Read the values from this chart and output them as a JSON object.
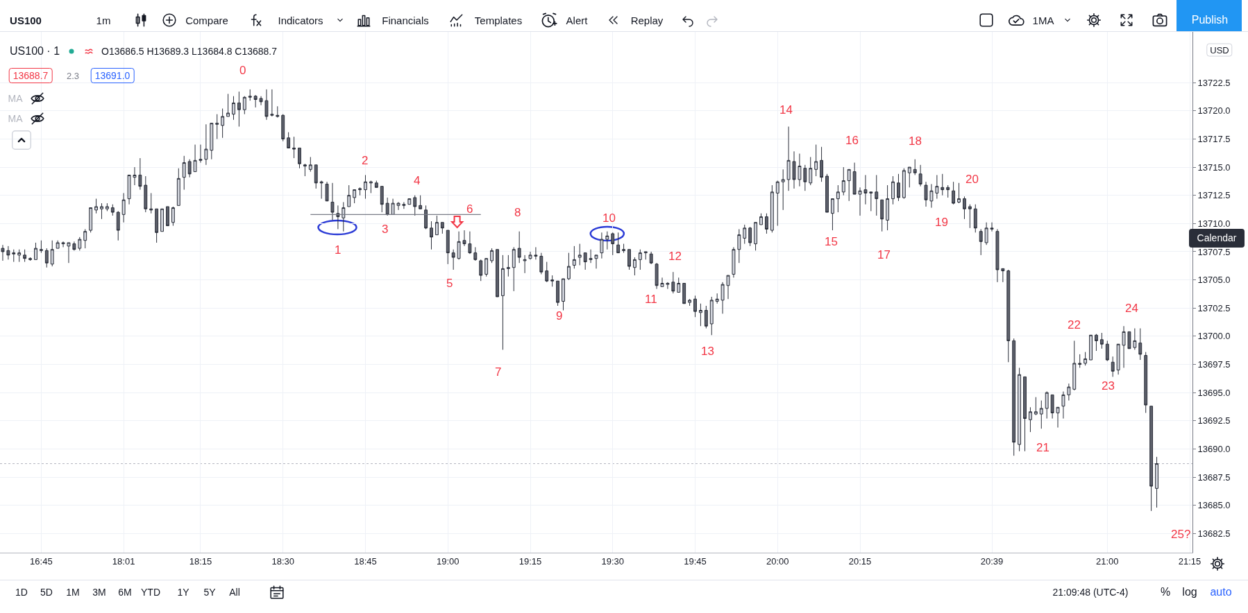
{
  "chart_data": {
    "type": "candlestick",
    "title": "US100 · 1",
    "subtitle": "O13686.5 H13689.3 L13684.8 C13688.7",
    "categories": [
      null,
      null,
      null,
      null,
      null,
      null,
      null,
      "16:45",
      null,
      null,
      null,
      null,
      null,
      null,
      null,
      null,
      null,
      null,
      null,
      null,
      null,
      null,
      "18:01",
      null,
      null,
      null,
      null,
      null,
      null,
      null,
      null,
      null,
      null,
      null,
      null,
      null,
      "18:15",
      null,
      null,
      null,
      null,
      null,
      null,
      null,
      null,
      null,
      null,
      null,
      null,
      null,
      null,
      "18:30",
      null,
      null,
      null,
      null,
      null,
      null,
      null,
      null,
      null,
      null,
      null,
      null,
      null,
      null,
      "18:45",
      null,
      null,
      null,
      null,
      null,
      null,
      null,
      null,
      null,
      null,
      null,
      null,
      null,
      null,
      "19:00",
      null,
      null,
      null,
      null,
      null,
      null,
      null,
      null,
      null,
      null,
      null,
      null,
      null,
      null,
      "19:15",
      null,
      null,
      null,
      null,
      null,
      null,
      null,
      null,
      null,
      null,
      null,
      null,
      null,
      null,
      "19:30",
      null,
      null,
      null,
      null,
      null,
      null,
      null,
      null,
      null,
      null,
      null,
      null,
      null,
      null,
      "19:45",
      null,
      null,
      null,
      null,
      null,
      null,
      null,
      null,
      null,
      null,
      null,
      null,
      null,
      null,
      "20:00",
      null,
      null,
      null,
      null,
      null,
      null,
      null,
      null,
      null,
      null,
      null,
      null,
      null,
      null,
      "20:15",
      null,
      null,
      null,
      null,
      null,
      null,
      null,
      null,
      null,
      null,
      null,
      null,
      null,
      null,
      null,
      null,
      null,
      null,
      null,
      null,
      null,
      null,
      null,
      "20:39",
      null,
      null,
      null,
      null,
      null,
      null,
      null,
      null,
      null,
      null,
      null,
      null,
      null,
      null,
      null,
      null,
      null,
      null,
      null,
      null,
      "21:00",
      null,
      null,
      null,
      null,
      null,
      null,
      null,
      null,
      null,
      null,
      null,
      null,
      null,
      null,
      "21:15"
    ],
    "ohlc": [
      [
        13707.8,
        13708.1,
        13706.7,
        13707.5
      ],
      [
        13707.6,
        13708.0,
        13706.8,
        13707.2
      ],
      [
        13707.4,
        13707.7,
        13706.6,
        13707.3
      ],
      [
        13707.2,
        13707.7,
        13706.6,
        13707.4
      ],
      [
        13707.2,
        13707.7,
        13706.6,
        13706.9
      ],
      [
        13706.9,
        13707.0,
        13706.7,
        13706.8
      ],
      [
        13706.8,
        13708.3,
        13706.8,
        13707.8
      ],
      [
        13707.6,
        13708.5,
        13707.4,
        13707.7
      ],
      [
        13707.6,
        13707.8,
        13706.1,
        13706.5
      ],
      [
        13706.4,
        13708.5,
        13706.2,
        13707.7
      ],
      [
        13707.8,
        13708.5,
        13707.8,
        13708.3
      ],
      [
        13708.2,
        13708.4,
        13707.9,
        13708.3
      ],
      [
        13708.0,
        13708.3,
        13706.5,
        13708.3
      ],
      [
        13708.2,
        13708.4,
        13707.6,
        13707.7
      ],
      [
        13707.8,
        13708.8,
        13707.6,
        13708.6
      ],
      [
        13708.5,
        13709.5,
        13707.8,
        13709.3
      ],
      [
        13709.4,
        13711.4,
        13709.2,
        13711.4
      ],
      [
        13711.2,
        13712.2,
        13710.9,
        13711.5
      ],
      [
        13711.3,
        13711.8,
        13710.4,
        13711.5
      ],
      [
        13711.3,
        13711.8,
        13711.1,
        13711.5
      ],
      [
        13711.4,
        13711.7,
        13710.7,
        13711.0
      ],
      [
        13711.0,
        13711.1,
        13708.5,
        13709.4
      ],
      [
        13710.8,
        13712.7,
        13710.1,
        13712.1
      ],
      [
        13712.2,
        13714.3,
        13711.7,
        13714.3
      ],
      [
        13714.1,
        13715.0,
        13713.4,
        13714.3
      ],
      [
        13714.3,
        13715.8,
        13713.0,
        13713.3
      ],
      [
        13713.4,
        13714.2,
        13711.0,
        13711.3
      ],
      [
        13711.3,
        13712.7,
        13710.9,
        13711.2
      ],
      [
        13711.3,
        13711.3,
        13708.3,
        13709.2
      ],
      [
        13709.3,
        13711.3,
        13709.3,
        13711.3
      ],
      [
        13711.5,
        13711.5,
        13709.8,
        13709.8
      ],
      [
        13710.1,
        13711.5,
        13709.8,
        13711.4
      ],
      [
        13711.6,
        13714.9,
        13711.6,
        13714.0
      ],
      [
        13714.1,
        13716.0,
        13713.0,
        13715.4
      ],
      [
        13715.5,
        13715.7,
        13714.1,
        13714.4
      ],
      [
        13714.6,
        13717.0,
        13714.6,
        13715.6
      ],
      [
        13715.6,
        13717.0,
        13715.4,
        13715.7
      ],
      [
        13715.7,
        13718.8,
        13715.2,
        13716.6
      ],
      [
        13716.5,
        13718.9,
        13715.7,
        13718.9
      ],
      [
        13718.8,
        13719.7,
        13717.5,
        13718.9
      ],
      [
        13718.7,
        13720.2,
        13717.6,
        13719.5
      ],
      [
        13719.5,
        13721.5,
        13719.5,
        13719.8
      ],
      [
        13719.7,
        13721.3,
        13719.2,
        13720.7
      ],
      [
        13720.7,
        13721.7,
        13718.6,
        13720.1
      ],
      [
        13720.1,
        13721.3,
        13719.7,
        13721.2
      ],
      [
        13721.2,
        13721.9,
        13720.9,
        13721.3
      ],
      [
        13721.3,
        13721.4,
        13720.3,
        13721.0
      ],
      [
        13721.1,
        13721.3,
        13720.5,
        13720.8
      ],
      [
        13720.9,
        13721.9,
        13719.2,
        13719.5
      ],
      [
        13719.6,
        13721.9,
        13719.5,
        13719.7
      ],
      [
        13719.6,
        13720.4,
        13719.4,
        13719.5
      ],
      [
        13719.6,
        13719.7,
        13717.3,
        13717.5
      ],
      [
        13717.6,
        13718.1,
        13716.7,
        13716.7
      ],
      [
        13716.7,
        13717.7,
        13715.8,
        13716.6
      ],
      [
        13716.7,
        13716.7,
        13714.9,
        13715.3
      ],
      [
        13715.2,
        13715.3,
        13714.2,
        13715.1
      ],
      [
        13714.8,
        13715.9,
        13714.6,
        13715.2
      ],
      [
        13715.2,
        13715.2,
        13713.1,
        13713.6
      ],
      [
        13713.7,
        13713.8,
        13712.2,
        13713.6
      ],
      [
        13713.5,
        13713.7,
        13712.0,
        13712.0
      ],
      [
        13711.9,
        13713.6,
        13710.3,
        13711.0
      ],
      [
        13710.9,
        13711.6,
        13709.5,
        13710.6
      ],
      [
        13710.5,
        13711.9,
        13709.3,
        13711.4
      ],
      [
        13711.5,
        13713.4,
        13711.5,
        13712.5
      ],
      [
        13712.3,
        13713.0,
        13711.8,
        13713.0
      ],
      [
        13713.0,
        13713.2,
        13712.5,
        13713.1
      ],
      [
        13713.0,
        13714.3,
        13712.2,
        13713.7
      ],
      [
        13713.6,
        13713.8,
        13712.7,
        13713.7
      ],
      [
        13713.6,
        13713.8,
        13713.2,
        13713.2
      ],
      [
        13713.3,
        13713.3,
        13711.0,
        13711.7
      ],
      [
        13711.8,
        13712.3,
        13710.7,
        13710.8
      ],
      [
        13710.8,
        13712.2,
        13710.8,
        13711.8
      ],
      [
        13711.6,
        13711.9,
        13711.2,
        13711.8
      ],
      [
        13711.6,
        13711.9,
        13711.3,
        13711.7
      ],
      [
        13711.7,
        13712.2,
        13711.7,
        13712.2
      ],
      [
        13712.3,
        13712.5,
        13710.7,
        13711.5
      ],
      [
        13711.6,
        13712.5,
        13711.3,
        13711.3
      ],
      [
        13711.2,
        13711.6,
        13709.5,
        13709.6
      ],
      [
        13709.6,
        13710.2,
        13707.7,
        13708.8
      ],
      [
        13709.0,
        13710.7,
        13709.0,
        13710.1
      ],
      [
        13710.1,
        13710.1,
        13709.1,
        13709.6
      ],
      [
        13709.4,
        13709.4,
        13706.4,
        13707.4
      ],
      [
        13707.4,
        13707.7,
        13705.9,
        13707.0
      ],
      [
        13706.9,
        13709.3,
        13706.8,
        13708.4
      ],
      [
        13708.5,
        13709.4,
        13708.0,
        13708.2
      ],
      [
        13708.2,
        13709.3,
        13707.3,
        13707.4
      ],
      [
        13707.4,
        13707.9,
        13706.7,
        13706.8
      ],
      [
        13706.7,
        13706.8,
        13704.9,
        13705.4
      ],
      [
        13705.5,
        13706.9,
        13705.3,
        13706.9
      ],
      [
        13706.7,
        13707.8,
        13706.5,
        13707.6
      ],
      [
        13707.7,
        13707.7,
        13703.5,
        13703.5
      ],
      [
        13703.6,
        13707.2,
        13698.8,
        13706.0
      ],
      [
        13706.0,
        13707.2,
        13705.3,
        13706.1
      ],
      [
        13706.1,
        13707.9,
        13704.0,
        13707.7
      ],
      [
        13707.8,
        13709.3,
        13706.5,
        13707.0
      ],
      [
        13706.7,
        13707.2,
        13705.6,
        13706.8
      ],
      [
        13706.9,
        13707.5,
        13706.8,
        13707.2
      ],
      [
        13707.1,
        13707.9,
        13706.8,
        13707.2
      ],
      [
        13707.1,
        13707.4,
        13705.5,
        13705.7
      ],
      [
        13705.8,
        13706.6,
        13704.8,
        13704.9
      ],
      [
        13705.0,
        13705.4,
        13704.4,
        13704.9
      ],
      [
        13704.9,
        13704.9,
        13702.7,
        13703.0
      ],
      [
        13703.1,
        13705.1,
        13702.3,
        13705.1
      ],
      [
        13705.1,
        13707.4,
        13705.0,
        13706.2
      ],
      [
        13706.3,
        13708.0,
        13706.0,
        13706.8
      ],
      [
        13707.0,
        13708.2,
        13706.3,
        13707.2
      ],
      [
        13707.4,
        13707.4,
        13705.9,
        13706.6
      ],
      [
        13706.8,
        13707.7,
        13706.5,
        13706.9
      ],
      [
        13706.9,
        13707.2,
        13706.0,
        13707.2
      ],
      [
        13707.4,
        13709.2,
        13706.9,
        13708.6
      ],
      [
        13708.6,
        13709.3,
        13707.7,
        13708.9
      ],
      [
        13709.1,
        13709.2,
        13707.2,
        13708.2
      ],
      [
        13708.1,
        13709.2,
        13707.4,
        13707.4
      ],
      [
        13707.7,
        13708.2,
        13707.4,
        13707.6
      ],
      [
        13707.7,
        13707.7,
        13705.9,
        13706.2
      ],
      [
        13706.1,
        13707.0,
        13705.4,
        13706.8
      ],
      [
        13706.8,
        13707.7,
        13705.9,
        13707.4
      ],
      [
        13707.4,
        13707.5,
        13706.8,
        13707.5
      ],
      [
        13707.3,
        13707.5,
        13706.4,
        13706.5
      ],
      [
        13706.4,
        13706.5,
        13704.2,
        13704.5
      ],
      [
        13704.4,
        13705.2,
        13704.4,
        13704.7
      ],
      [
        13704.6,
        13704.8,
        13704.2,
        13704.7
      ],
      [
        13704.8,
        13705.7,
        13703.8,
        13704.0
      ],
      [
        13703.9,
        13705.2,
        13703.9,
        13704.7
      ],
      [
        13704.7,
        13704.7,
        13702.9,
        13702.9
      ],
      [
        13703.0,
        13703.3,
        13702.7,
        13703.2
      ],
      [
        13703.3,
        13703.6,
        13701.7,
        13702.2
      ],
      [
        13702.1,
        13702.9,
        13700.9,
        13702.3
      ],
      [
        13702.3,
        13702.7,
        13700.7,
        13700.9
      ],
      [
        13701.1,
        13703.5,
        13700.1,
        13703.2
      ],
      [
        13703.1,
        13703.8,
        13702.9,
        13703.3
      ],
      [
        13703.2,
        13704.8,
        13702.0,
        13704.6
      ],
      [
        13704.5,
        13705.4,
        13703.3,
        13705.4
      ],
      [
        13705.5,
        13707.9,
        13705.2,
        13707.7
      ],
      [
        13707.7,
        13709.5,
        13706.5,
        13709.0
      ],
      [
        13708.7,
        13709.9,
        13708.2,
        13709.6
      ],
      [
        13709.6,
        13709.7,
        13708.0,
        13708.3
      ],
      [
        13708.2,
        13710.1,
        13707.6,
        13710.1
      ],
      [
        13709.9,
        13710.9,
        13709.9,
        13710.6
      ],
      [
        13710.6,
        13710.9,
        13709.1,
        13709.5
      ],
      [
        13709.4,
        13713.4,
        13709.2,
        13712.8
      ],
      [
        13712.7,
        13713.8,
        13709.8,
        13713.7
      ],
      [
        13713.7,
        13714.8,
        13711.2,
        13713.9
      ],
      [
        13713.9,
        13718.6,
        13712.9,
        13715.6
      ],
      [
        13715.5,
        13716.4,
        13713.1,
        13713.9
      ],
      [
        13713.9,
        13716.2,
        13713.3,
        13715.1
      ],
      [
        13714.9,
        13715.2,
        13712.9,
        13713.7
      ],
      [
        13713.6,
        13715.9,
        13713.4,
        13714.9
      ],
      [
        13714.8,
        13717.0,
        13714.2,
        13715.5
      ],
      [
        13715.6,
        13716.8,
        13713.7,
        13714.1
      ],
      [
        13714.2,
        13714.4,
        13711.0,
        13711.0
      ],
      [
        13710.9,
        13712.2,
        13709.4,
        13712.2
      ],
      [
        13712.2,
        13713.4,
        13711.0,
        13712.8
      ],
      [
        13712.8,
        13715.0,
        13712.5,
        13713.8
      ],
      [
        13713.8,
        13714.8,
        13712.0,
        13714.8
      ],
      [
        13714.6,
        13715.4,
        13712.6,
        13712.6
      ],
      [
        13712.6,
        13713.2,
        13710.7,
        13712.9
      ],
      [
        13713.0,
        13714.3,
        13711.7,
        13712.7
      ],
      [
        13712.8,
        13712.8,
        13711.1,
        13712.7
      ],
      [
        13712.8,
        13714.3,
        13710.7,
        13712.2
      ],
      [
        13712.1,
        13712.1,
        13709.3,
        13710.4
      ],
      [
        13710.3,
        13713.4,
        13709.4,
        13712.2
      ],
      [
        13712.2,
        13714.2,
        13711.7,
        13713.7
      ],
      [
        13713.6,
        13714.4,
        13712.0,
        13712.3
      ],
      [
        13712.3,
        13714.9,
        13712.2,
        13714.7
      ],
      [
        13714.5,
        13715.0,
        13713.2,
        13715.0
      ],
      [
        13714.8,
        13715.7,
        13714.3,
        13714.5
      ],
      [
        13714.4,
        13715.2,
        13713.3,
        13713.5
      ],
      [
        13713.4,
        13713.7,
        13711.5,
        13712.1
      ],
      [
        13712.0,
        13713.5,
        13711.4,
        13712.9
      ],
      [
        13712.7,
        13714.3,
        13712.2,
        13713.3
      ],
      [
        13713.2,
        13714.4,
        13712.5,
        13713.0
      ],
      [
        13713.2,
        13713.4,
        13712.3,
        13713.0
      ],
      [
        13712.9,
        13713.7,
        13711.7,
        13711.8
      ],
      [
        13711.9,
        13713.6,
        13711.8,
        13712.2
      ],
      [
        13712.2,
        13712.4,
        13710.4,
        13711.3
      ],
      [
        13711.5,
        13711.7,
        13709.6,
        13711.3
      ],
      [
        13711.3,
        13711.7,
        13709.2,
        13709.6
      ],
      [
        13709.3,
        13709.5,
        13707.2,
        13708.4
      ],
      [
        13708.3,
        13710.1,
        13708.1,
        13709.6
      ],
      [
        13709.5,
        13710.1,
        13709.3,
        13709.6
      ],
      [
        13709.3,
        13709.5,
        13704.8,
        13705.9
      ],
      [
        13706.0,
        13706.0,
        13704.8,
        13705.8
      ],
      [
        13705.8,
        13705.9,
        13697.7,
        13699.6
      ],
      [
        13699.6,
        13699.8,
        13689.4,
        13690.6
      ],
      [
        13690.4,
        13697.2,
        13689.8,
        13696.6
      ],
      [
        13696.4,
        13696.4,
        13689.8,
        13692.7
      ],
      [
        13692.6,
        13693.7,
        13691.5,
        13693.3
      ],
      [
        13693.1,
        13694.6,
        13693.0,
        13693.3
      ],
      [
        13693.1,
        13694.3,
        13691.8,
        13693.6
      ],
      [
        13693.6,
        13695.1,
        13692.7,
        13695.0
      ],
      [
        13694.8,
        13694.8,
        13692.7,
        13693.2
      ],
      [
        13693.2,
        13693.7,
        13691.9,
        13693.7
      ],
      [
        13693.8,
        13695.1,
        13692.7,
        13694.8
      ],
      [
        13694.8,
        13695.8,
        13694.3,
        13695.5
      ],
      [
        13695.3,
        13699.6,
        13695.2,
        13697.6
      ],
      [
        13697.5,
        13698.4,
        13697.2,
        13697.6
      ],
      [
        13697.6,
        13698.6,
        13697.4,
        13698.0
      ],
      [
        13697.9,
        13700.1,
        13697.9,
        13700.1
      ],
      [
        13700.1,
        13700.2,
        13698.7,
        13699.6
      ],
      [
        13699.7,
        13700.3,
        13698.9,
        13699.3
      ],
      [
        13699.3,
        13699.6,
        13697.8,
        13697.9
      ],
      [
        13697.7,
        13698.2,
        13696.4,
        13696.9
      ],
      [
        13697.0,
        13699.3,
        13696.6,
        13699.3
      ],
      [
        13699.2,
        13700.9,
        13697.2,
        13700.4
      ],
      [
        13700.4,
        13700.4,
        13698.9,
        13698.9
      ],
      [
        13699.0,
        13700.7,
        13698.8,
        13699.6
      ],
      [
        13699.4,
        13700.7,
        13697.9,
        13698.4
      ],
      [
        13698.3,
        13698.6,
        13693.2,
        13693.9
      ],
      [
        13693.8,
        13693.8,
        13684.5,
        13686.7
      ],
      [
        13686.5,
        13689.3,
        13684.8,
        13688.7
      ],
      null,
      null,
      null,
      null,
      null,
      null
    ],
    "series": [
      {
        "type": "line",
        "color": "#787b86",
        "values": [
          null,
          null,
          null,
          null,
          null,
          null,
          null,
          null,
          null,
          null,
          null,
          null,
          null,
          null,
          null,
          null,
          null,
          null,
          null,
          null,
          null,
          null,
          null,
          null,
          null,
          null,
          null,
          null,
          null,
          null,
          null,
          null,
          null,
          null,
          null,
          null,
          null,
          null,
          null,
          null,
          null,
          null,
          null,
          null,
          null,
          null,
          null,
          null,
          null,
          null,
          null,
          null,
          null,
          null,
          null,
          null,
          13710.8,
          13710.8,
          13710.8,
          13710.8,
          13710.8,
          13710.8,
          13710.8,
          13710.8,
          13710.8,
          13710.8,
          13710.8,
          13710.8,
          13710.8,
          13710.8,
          13710.8,
          13710.8,
          13710.8,
          13710.8,
          13710.8,
          13710.8,
          13710.8,
          13710.8,
          13710.8,
          13710.8,
          13710.8,
          13710.8,
          13710.8,
          13710.8,
          13710.8,
          13710.8,
          13710.8,
          13710.8,
          null,
          null,
          null,
          null,
          null,
          null,
          null,
          null,
          null,
          null,
          null,
          null,
          null,
          null,
          null,
          null,
          null,
          null,
          null,
          null,
          null,
          null,
          null,
          null,
          null,
          null,
          null,
          null,
          null,
          null,
          null,
          null,
          null,
          null,
          null,
          null,
          null,
          null,
          null,
          null,
          null,
          null,
          null,
          null,
          null,
          null,
          null,
          null,
          null,
          null,
          null,
          null,
          null,
          null,
          null,
          null,
          null,
          null,
          null,
          null,
          null,
          null,
          null,
          null,
          null,
          null,
          null,
          null,
          null,
          null,
          null,
          null,
          null,
          null,
          null,
          null,
          null,
          null,
          null,
          null,
          null,
          null,
          null,
          null,
          null,
          null,
          null,
          null,
          null,
          null,
          null,
          null,
          null,
          null,
          null,
          null,
          null,
          null,
          null,
          null,
          null,
          null,
          null,
          null,
          null,
          null,
          null,
          null,
          null,
          null,
          null,
          null,
          null,
          null,
          null,
          null,
          null,
          null,
          null,
          null,
          null,
          null,
          null,
          null,
          null,
          null,
          null,
          null,
          null
        ]
      }
    ],
    "ylim": [
      13680.8,
      13727.0
    ],
    "yticks": [
      13682.5,
      {
        "value": 13685,
        "label": "13685.0"
      },
      13687.5,
      {
        "value": 13690,
        "label": "13690.0"
      },
      13692.5,
      {
        "value": 13695,
        "label": "13695.0"
      },
      13697.5,
      {
        "value": 13700,
        "label": "13700.0"
      },
      13702.5,
      {
        "value": 13705,
        "label": "13705.0"
      },
      13707.5,
      {
        "value": 13710,
        "label": "13710.0"
      },
      13712.5,
      {
        "value": 13715,
        "label": "13715.0"
      },
      13717.5,
      {
        "value": 13720,
        "label": "13720.0"
      },
      13722.5
    ],
    "grid": true,
    "ref_lines": [
      {
        "axis": "y",
        "value": 13688.7,
        "color": "#b2b5be",
        "line_style": "dotted"
      }
    ],
    "annotations": [
      "US100",
      "1m",
      "Compare",
      "Indicators",
      "Financials",
      "Templates",
      "Alert",
      "Replay",
      "1MA",
      "Publish",
      "13688.7",
      "2.3",
      "13691.0",
      "MA",
      "MA",
      "USD",
      "Calendar",
      "1D",
      "5D",
      "1M",
      "3M",
      "6M",
      "YTD",
      "1Y",
      "5Y",
      "All",
      "21:09:48 (UTC-4)",
      "%",
      "log",
      "auto",
      "0",
      "1",
      "2",
      "3",
      "4",
      "5",
      "6",
      "7",
      "8",
      "9",
      "10",
      "11",
      "12",
      "13",
      "14",
      "15",
      "16",
      "17",
      "18",
      "19",
      "20",
      "21",
      "22",
      "23",
      "24",
      "25?"
    ]
  }
}
